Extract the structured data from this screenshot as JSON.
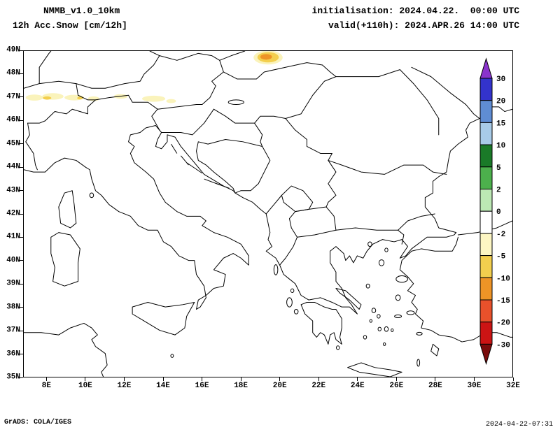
{
  "header": {
    "line1_left": "NMMB_v1.0_10km",
    "line2_left": "12h Acc.Snow [cm/12h]",
    "line1_right": "initialisation: 2024.04.22.  00:00 UTC",
    "line2_right": "valid(+110h): 2024.APR.26 14:00 UTC"
  },
  "axes": {
    "x_ticks": [
      "8E",
      "10E",
      "12E",
      "14E",
      "16E",
      "18E",
      "20E",
      "22E",
      "24E",
      "26E",
      "28E",
      "30E",
      "32E"
    ],
    "y_ticks": [
      "49N",
      "48N",
      "47N",
      "46N",
      "45N",
      "44N",
      "43N",
      "42N",
      "41N",
      "40N",
      "39N",
      "38N",
      "37N",
      "36N",
      "35N"
    ]
  },
  "colorbar": {
    "labels": [
      "30",
      "20",
      "15",
      "10",
      "5",
      "2",
      "0",
      "-2",
      "-5",
      "-10",
      "-15",
      "-20",
      "-30"
    ],
    "segment_colors": [
      "#3333cc",
      "#5f8dd3",
      "#a8cbe8",
      "#1a7a28",
      "#4cb04c",
      "#bce8b4",
      "#ffffff",
      "#fdf6c3",
      "#f3cf4e",
      "#ee9426",
      "#e8512b",
      "#cc1414"
    ],
    "arrow_top_color": "#8a33cc",
    "arrow_bottom_color": "#7a0c0c"
  },
  "colors": {
    "snow_cream": "#faf3bb",
    "snow_yellow": "#f3cf4e",
    "snow_orange": "#ee9426"
  },
  "footer": {
    "credit": "GrADS: COLA/IGES",
    "timestamp": "2024-04-22-07:31"
  }
}
